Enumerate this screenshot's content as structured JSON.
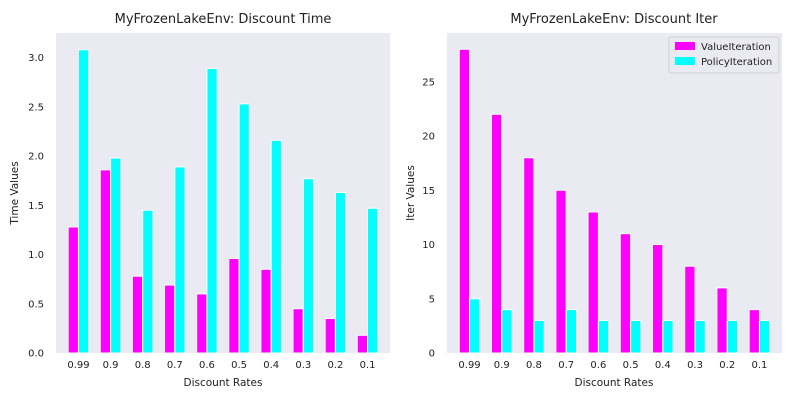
{
  "chart_data": [
    {
      "type": "bar",
      "title": "MyFrozenLakeEnv: Discount Time",
      "xlabel": "Discount Rates",
      "ylabel": "Time Values",
      "categories": [
        "0.99",
        "0.9",
        "0.8",
        "0.7",
        "0.6",
        "0.5",
        "0.4",
        "0.3",
        "0.2",
        "0.1"
      ],
      "series": [
        {
          "values": [
            1.28,
            1.86,
            0.78,
            0.69,
            0.6,
            0.96,
            0.85,
            0.45,
            0.35,
            0.18
          ]
        },
        {
          "values": [
            3.08,
            1.98,
            1.45,
            1.89,
            2.89,
            2.53,
            2.16,
            1.77,
            1.63,
            1.47
          ]
        }
      ],
      "ylim": [
        0,
        3.25
      ],
      "yticks": [
        "0.0",
        "0.5",
        "1.0",
        "1.5",
        "2.0",
        "2.5",
        "3.0"
      ],
      "ytick_values": [
        0,
        0.5,
        1.0,
        1.5,
        2.0,
        2.5,
        3.0
      ],
      "legend": "none",
      "grid": false
    },
    {
      "type": "bar",
      "title": "MyFrozenLakeEnv: Discount Iter",
      "xlabel": "Discount Rates",
      "ylabel": "Iter Values",
      "categories": [
        "0.99",
        "0.9",
        "0.8",
        "0.7",
        "0.6",
        "0.5",
        "0.4",
        "0.3",
        "0.2",
        "0.1"
      ],
      "series": [
        {
          "name": "ValueIteration",
          "values": [
            28,
            22,
            18,
            15,
            13,
            11,
            10,
            8,
            6,
            4
          ]
        },
        {
          "name": "PolicyIteration",
          "values": [
            5,
            4,
            3,
            4,
            3,
            3,
            3,
            3,
            3,
            3
          ]
        }
      ],
      "ylim": [
        0,
        29.5
      ],
      "yticks": [
        "0",
        "5",
        "10",
        "15",
        "20",
        "25"
      ],
      "ytick_values": [
        0,
        5,
        10,
        15,
        20,
        25
      ],
      "legend": "top-right",
      "grid": false
    }
  ],
  "colors": {
    "series_1": "#ff00ff",
    "series_2": "#00ffff",
    "axes_bg": "#eaeaf2",
    "bar_edge": "#ffffff"
  }
}
